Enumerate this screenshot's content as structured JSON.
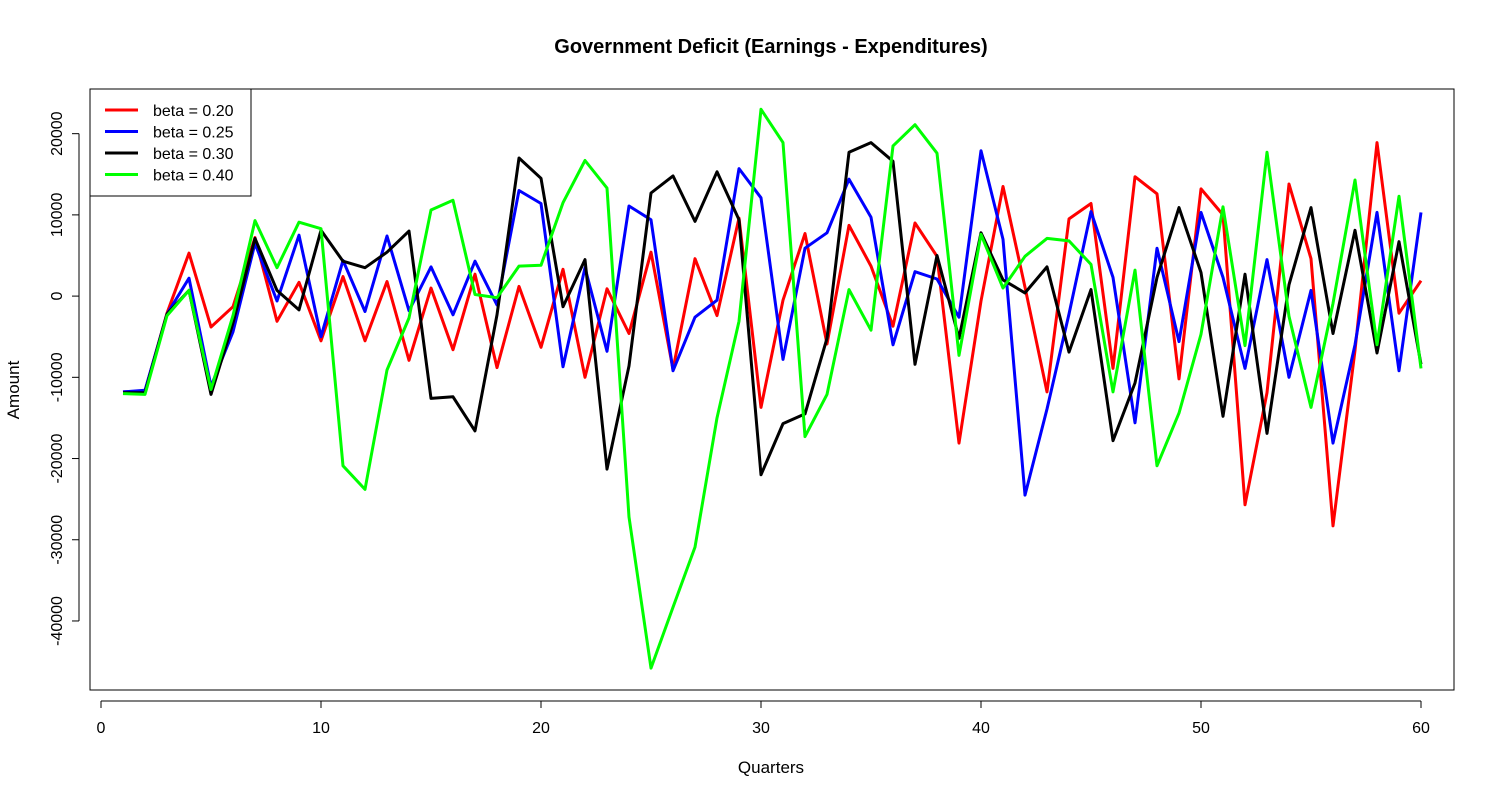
{
  "chart_data": {
    "type": "line",
    "title": "Government Deficit (Earnings - Expenditures)",
    "xlabel": "Quarters",
    "ylabel": "Amount",
    "xlim": [
      -0.5,
      61.5
    ],
    "ylim": [
      -48500,
      25500
    ],
    "xticks": [
      0,
      10,
      20,
      30,
      40,
      50,
      60
    ],
    "yticks": [
      -40000,
      -30000,
      -20000,
      -10000,
      0,
      10000,
      20000
    ],
    "grid": false,
    "legend_position": "top-left",
    "x": [
      1,
      2,
      3,
      4,
      5,
      6,
      7,
      8,
      9,
      10,
      11,
      12,
      13,
      14,
      15,
      16,
      17,
      18,
      19,
      20,
      21,
      22,
      23,
      24,
      25,
      26,
      27,
      28,
      29,
      30,
      31,
      32,
      33,
      34,
      35,
      36,
      37,
      38,
      39,
      40,
      41,
      42,
      43,
      44,
      45,
      46,
      47,
      48,
      49,
      50,
      51,
      52,
      53,
      54,
      55,
      56,
      57,
      58,
      59,
      60
    ],
    "series": [
      {
        "name": "beta = 0.20",
        "color": "#ff0000",
        "values": [
          -11800,
          -11700,
          -2100,
          5300,
          -3800,
          -1300,
          7200,
          -3100,
          1700,
          -5500,
          2400,
          -5500,
          1800,
          -7900,
          1000,
          -6600,
          2700,
          -8800,
          1200,
          -6300,
          3300,
          -10000,
          900,
          -4600,
          5400,
          -9000,
          4600,
          -2400,
          9600,
          -13700,
          -500,
          7700,
          -5900,
          8700,
          3700,
          -3700,
          9000,
          4900,
          -18100,
          -600,
          13500,
          1100,
          -11800,
          9500,
          11400,
          -8900,
          14700,
          12600,
          -10200,
          13200,
          10000,
          -25700,
          -11900,
          13800,
          4600,
          -28300,
          -6700,
          18900,
          -2100,
          1900
        ]
      },
      {
        "name": "beta = 0.25",
        "color": "#0000ff",
        "values": [
          -11800,
          -11600,
          -2200,
          2200,
          -11100,
          -4400,
          6500,
          -600,
          7500,
          -5000,
          4400,
          -1900,
          7400,
          -1800,
          3600,
          -2300,
          4300,
          -1100,
          13000,
          11400,
          -8700,
          3500,
          -6800,
          11100,
          9400,
          -9200,
          -2600,
          -500,
          15700,
          12100,
          -7800,
          5900,
          7800,
          14400,
          9700,
          -6000,
          3000,
          2100,
          -2600,
          17900,
          7000,
          -24500,
          -13900,
          -2200,
          10400,
          2300,
          -15600,
          5900,
          -5600,
          10300,
          2300,
          -8900,
          4500,
          -10000,
          700,
          -18100,
          -6000,
          10300,
          -9200,
          10300
        ]
      },
      {
        "name": "beta = 0.30",
        "color": "#000000",
        "values": [
          -11900,
          -11900,
          -2200,
          700,
          -12100,
          -3300,
          7100,
          700,
          -1700,
          8100,
          4300,
          3500,
          5400,
          8000,
          -12600,
          -12400,
          -16600,
          -2300,
          17000,
          14500,
          -1300,
          4500,
          -21300,
          -8600,
          12700,
          14800,
          9200,
          15300,
          9400,
          -22000,
          -15700,
          -14500,
          -5200,
          17700,
          18900,
          16600,
          -8400,
          5000,
          -5200,
          7800,
          2000,
          400,
          3600,
          -6900,
          800,
          -17800,
          -10700,
          2300,
          10900,
          2900,
          -14800,
          2700,
          -16900,
          1400,
          10900,
          -4600,
          8100,
          -7000,
          6700,
          -8400
        ]
      },
      {
        "name": "beta = 0.40",
        "color": "#00ff00",
        "values": [
          -12000,
          -12100,
          -2400,
          700,
          -11500,
          -2400,
          9300,
          3500,
          9100,
          8300,
          -20900,
          -23800,
          -9100,
          -2700,
          10600,
          11800,
          200,
          -200,
          3700,
          3800,
          11500,
          16700,
          13300,
          -27200,
          -45800,
          -38300,
          -30900,
          -15000,
          -3100,
          23000,
          18900,
          -17300,
          -12100,
          800,
          -4200,
          18500,
          21100,
          17600,
          -7300,
          7600,
          1000,
          4900,
          7100,
          6800,
          3900,
          -11800,
          3200,
          -20900,
          -14400,
          -4700,
          11000,
          -6100,
          17700,
          -2500,
          -13700,
          -900,
          14300,
          -6000,
          12300,
          -8900
        ]
      }
    ]
  }
}
